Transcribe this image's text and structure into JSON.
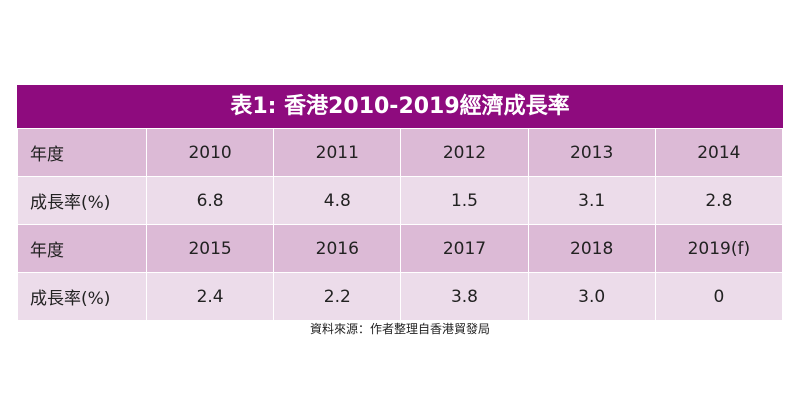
{
  "title": "表1: 香港2010-2019經濟成長率",
  "table": {
    "rows": [
      [
        "年度",
        "2010",
        "2011",
        "2012",
        "2013",
        "2014"
      ],
      [
        "成長率(%)",
        "6.8",
        "4.8",
        "1.5",
        "3.1",
        "2.8"
      ],
      [
        "年度",
        "2015",
        "2016",
        "2017",
        "2018",
        "2019(f)"
      ],
      [
        "成長率(%)",
        "2.4",
        "2.2",
        "3.8",
        "3.0",
        "0"
      ]
    ]
  },
  "source": "資料來源：作者整理自香港貿發局"
}
